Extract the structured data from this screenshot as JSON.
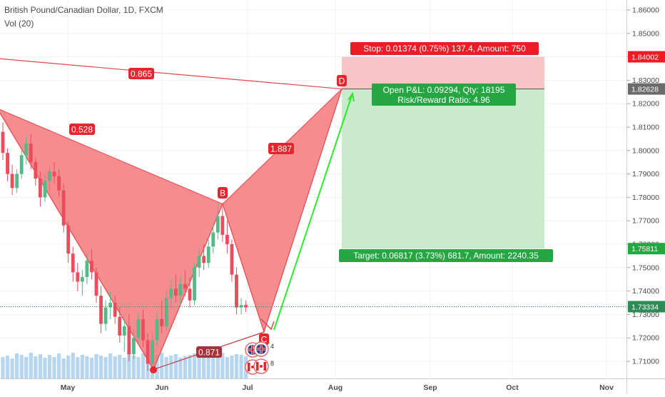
{
  "header": {
    "title": "British Pound/Canadian Dollar, 1D, FXCM",
    "volume_indicator": "Vol (20)"
  },
  "colors": {
    "up_candle": "#53b987",
    "down_candle": "#eb4d5c",
    "pattern_fill": "#f26d71",
    "pattern_line": "#e8464c",
    "profit_zone": "#c9ebcb",
    "loss_zone": "#f8c4c6",
    "projection_arrow": "#2ee82e",
    "volume_bar": "#a9cfec",
    "current_price": "#2e8b57"
  },
  "price_axis": {
    "labels": [
      "1.86000",
      "1.85000",
      "1.84000",
      "1.83000",
      "1.82000",
      "1.81000",
      "1.80000",
      "1.79000",
      "1.78000",
      "1.77000",
      "1.76000",
      "1.75000",
      "1.74000",
      "1.73000",
      "1.72000",
      "1.71000"
    ],
    "highlights": [
      {
        "value": "1.84002",
        "kind": "stop"
      },
      {
        "value": "1.82628",
        "kind": "entry"
      },
      {
        "value": "1.75811",
        "kind": "target"
      },
      {
        "value": "1.73334",
        "kind": "current"
      }
    ]
  },
  "time_axis": {
    "labels": [
      "May",
      "Jun",
      "Jul",
      "Aug",
      "Sep",
      "Oct",
      "Nov"
    ]
  },
  "pattern": {
    "points": {
      "X": 1.818,
      "A": 1.7065,
      "B": 1.7772,
      "C": 1.7225,
      "D": 1.8263
    },
    "labels": {
      "B": "B",
      "C": "C",
      "D": "D"
    },
    "ratios": {
      "XD": "0.865",
      "XB": "0.528",
      "BD": "1.887",
      "AC": "0.871"
    }
  },
  "position": {
    "stop_text": "Stop: 0.01374 (0.75%) 137.4, Amount: 750",
    "pnl_text": "Open P&L: 0.09294, Qty: 18195",
    "rr_text": "Risk/Reward Ratio: 4.96",
    "target_text": "Target: 0.06817 (3.73%) 681.7, Amount: 2240.35",
    "stop_price": 1.84002,
    "entry_price": 1.82628,
    "target_price": 1.75811,
    "current_price": 1.73334
  },
  "events": {
    "gb_count": "4",
    "ca_count": "8"
  },
  "chart_data": {
    "type": "candlestick",
    "title": "British Pound/Canadian Dollar, 1D, FXCM",
    "ylim": [
      1.705,
      1.865
    ],
    "x_labels": [
      "May",
      "Jun",
      "Jul",
      "Aug",
      "Sep",
      "Oct",
      "Nov"
    ],
    "candles": [
      [
        1.808,
        1.812,
        1.796,
        1.799
      ],
      [
        1.799,
        1.801,
        1.787,
        1.79
      ],
      [
        1.79,
        1.794,
        1.781,
        1.784
      ],
      [
        1.784,
        1.792,
        1.782,
        1.79
      ],
      [
        1.79,
        1.8,
        1.788,
        1.798
      ],
      [
        1.798,
        1.806,
        1.794,
        1.803
      ],
      [
        1.803,
        1.807,
        1.792,
        1.795
      ],
      [
        1.795,
        1.797,
        1.785,
        1.788
      ],
      [
        1.788,
        1.791,
        1.776,
        1.78
      ],
      [
        1.78,
        1.79,
        1.778,
        1.787
      ],
      [
        1.787,
        1.793,
        1.783,
        1.791
      ],
      [
        1.791,
        1.795,
        1.786,
        1.789
      ],
      [
        1.789,
        1.792,
        1.78,
        1.783
      ],
      [
        1.783,
        1.786,
        1.765,
        1.768
      ],
      [
        1.768,
        1.77,
        1.752,
        1.756
      ],
      [
        1.756,
        1.759,
        1.744,
        1.748
      ],
      [
        1.748,
        1.752,
        1.74,
        1.744
      ],
      [
        1.744,
        1.749,
        1.738,
        1.746
      ],
      [
        1.746,
        1.756,
        1.743,
        1.753
      ],
      [
        1.753,
        1.758,
        1.745,
        1.748
      ],
      [
        1.748,
        1.75,
        1.735,
        1.738
      ],
      [
        1.738,
        1.742,
        1.722,
        1.726
      ],
      [
        1.726,
        1.736,
        1.723,
        1.733
      ],
      [
        1.733,
        1.74,
        1.728,
        1.735
      ],
      [
        1.735,
        1.738,
        1.726,
        1.729
      ],
      [
        1.729,
        1.733,
        1.718,
        1.721
      ],
      [
        1.721,
        1.728,
        1.714,
        1.725
      ],
      [
        1.725,
        1.73,
        1.71,
        1.713
      ],
      [
        1.713,
        1.724,
        1.711,
        1.72
      ],
      [
        1.72,
        1.731,
        1.717,
        1.728
      ],
      [
        1.728,
        1.732,
        1.716,
        1.719
      ],
      [
        1.719,
        1.722,
        1.706,
        1.709
      ],
      [
        1.709,
        1.722,
        1.707,
        1.719
      ],
      [
        1.719,
        1.731,
        1.716,
        1.728
      ],
      [
        1.728,
        1.736,
        1.722,
        1.725
      ],
      [
        1.725,
        1.74,
        1.723,
        1.737
      ],
      [
        1.737,
        1.745,
        1.733,
        1.741
      ],
      [
        1.741,
        1.747,
        1.735,
        1.738
      ],
      [
        1.738,
        1.746,
        1.734,
        1.743
      ],
      [
        1.743,
        1.749,
        1.738,
        1.741
      ],
      [
        1.741,
        1.746,
        1.733,
        1.736
      ],
      [
        1.736,
        1.752,
        1.734,
        1.75
      ],
      [
        1.75,
        1.758,
        1.746,
        1.755
      ],
      [
        1.755,
        1.76,
        1.749,
        1.752
      ],
      [
        1.752,
        1.762,
        1.75,
        1.759
      ],
      [
        1.759,
        1.768,
        1.756,
        1.765
      ],
      [
        1.765,
        1.777,
        1.762,
        1.772
      ],
      [
        1.772,
        1.776,
        1.761,
        1.764
      ],
      [
        1.764,
        1.77,
        1.756,
        1.76
      ],
      [
        1.76,
        1.762,
        1.744,
        1.747
      ],
      [
        1.747,
        1.75,
        1.73,
        1.733
      ],
      [
        1.733,
        1.737,
        1.73,
        1.734
      ],
      [
        1.734,
        1.736,
        1.731,
        1.733
      ]
    ]
  }
}
